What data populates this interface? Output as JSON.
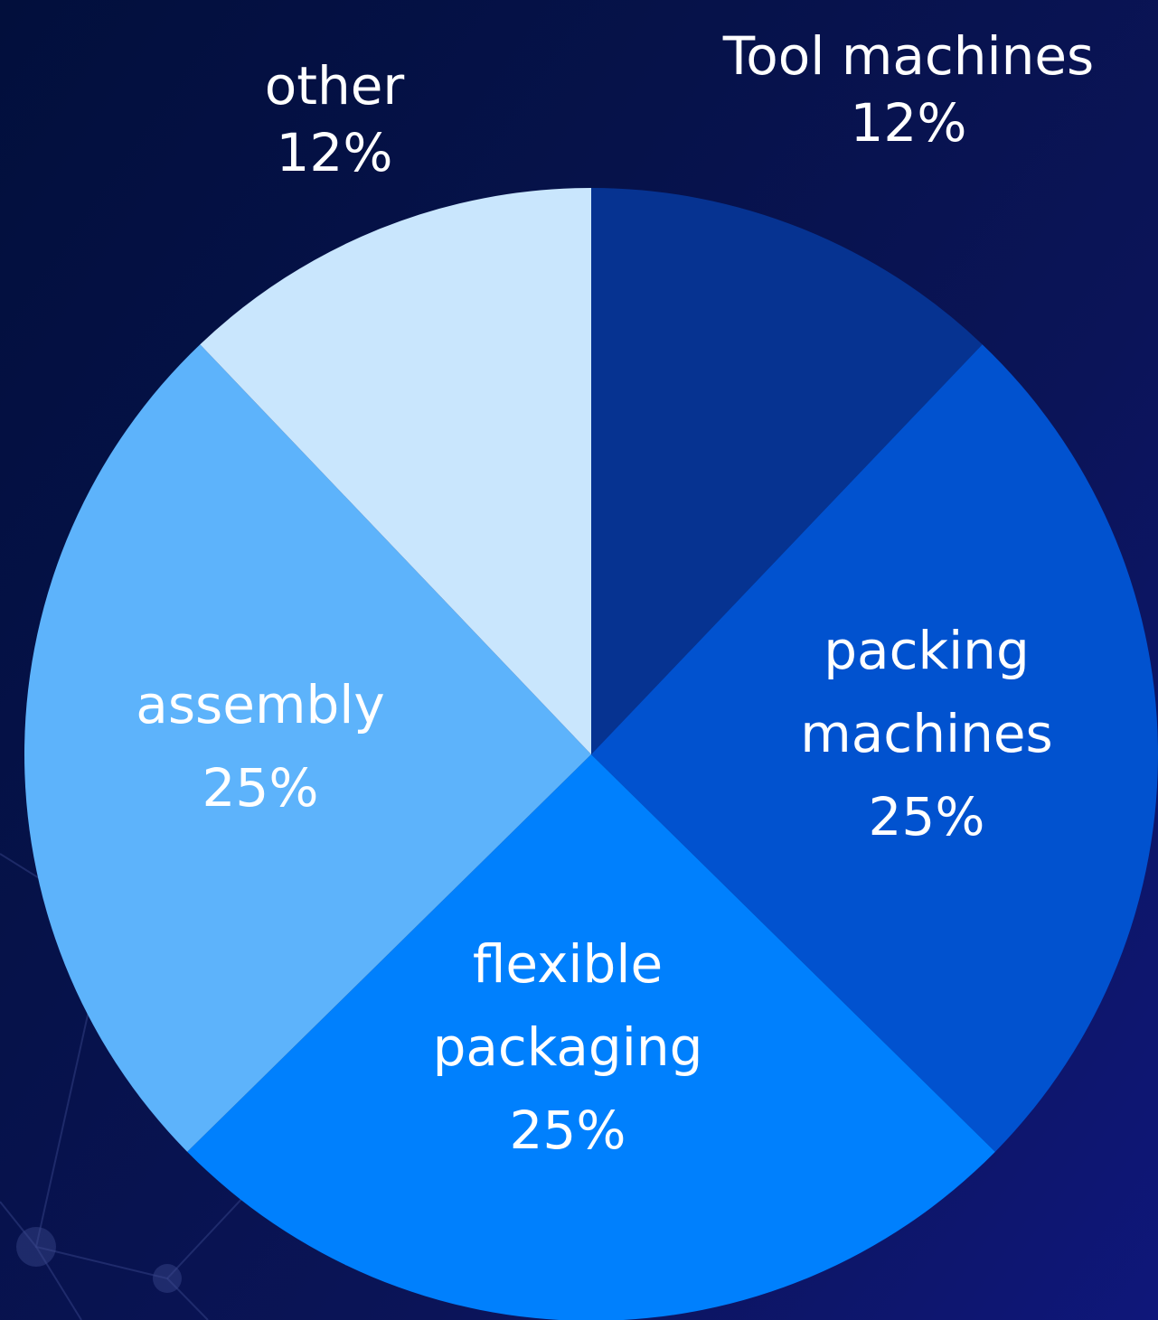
{
  "chart_data": {
    "type": "pie",
    "title": "",
    "slices": [
      {
        "label": "Tool machines",
        "label_lines": [
          "Tool machines"
        ],
        "value": 12,
        "value_label": "12%",
        "color": "#063391"
      },
      {
        "label": "packing machines",
        "label_lines": [
          "packing",
          "machines"
        ],
        "value": 25,
        "value_label": "25%",
        "color": "#0152cf"
      },
      {
        "label": "flexible packaging",
        "label_lines": [
          "flexible",
          "packaging"
        ],
        "value": 25,
        "value_label": "25%",
        "color": "#0080fd"
      },
      {
        "label": "assembly",
        "label_lines": [
          "assembly"
        ],
        "value": 25,
        "value_label": "25%",
        "color": "#5db3fb"
      },
      {
        "label": "other",
        "label_lines": [
          "other"
        ],
        "value": 12,
        "value_label": "12%",
        "color": "#c9e6fd"
      }
    ],
    "legend": "none",
    "start_direction": "top",
    "direction": "clockwise"
  },
  "colors": {
    "background": "#06124a",
    "label_text": "#ffffff"
  }
}
